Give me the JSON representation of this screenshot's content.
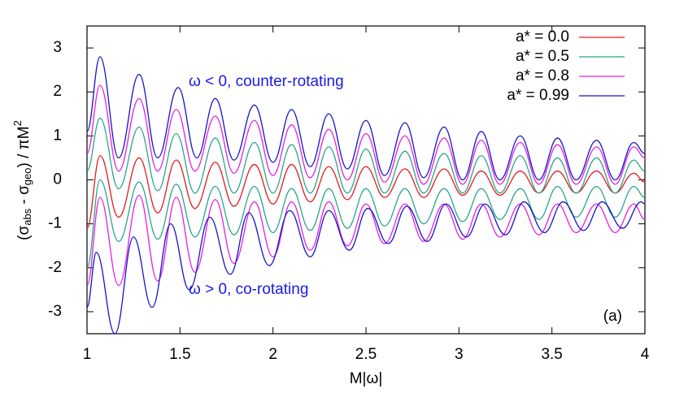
{
  "chart_data": {
    "type": "line",
    "x_label": "M|ω|",
    "y_label_parts": [
      "(σ",
      "abs",
      " - σ",
      "geo",
      ") / πM",
      "2"
    ],
    "annotations": [
      "ω < 0, counter-rotating",
      "ω > 0, co-rotating",
      "(a)"
    ],
    "xlim": [
      1,
      4
    ],
    "xticks": [
      1,
      1.5,
      2,
      2.5,
      3,
      3.5,
      4
    ],
    "ylim": [
      -3.5,
      3.5
    ],
    "yticks": [
      -3,
      -2,
      -1,
      0,
      1,
      2,
      3
    ],
    "legend": "upper right",
    "series": [
      {
        "name": "a* = 0.0",
        "color": "#e41a1c",
        "curves": [
          {
            "x": [
              1.0,
              1.07,
              1.17,
              1.28,
              1.38,
              1.48,
              1.58,
              1.69,
              1.79,
              1.9,
              2.0,
              2.1,
              2.2,
              2.3,
              2.4,
              2.5,
              2.6,
              2.71,
              2.81,
              2.92,
              3.02,
              3.12,
              3.22,
              3.33,
              3.43,
              3.53,
              3.63,
              3.74,
              3.84,
              3.94,
              4.0
            ],
            "values": [
              -1.1,
              0.55,
              -0.85,
              0.5,
              -0.75,
              0.45,
              -0.65,
              0.4,
              -0.6,
              0.35,
              -0.55,
              0.35,
              -0.5,
              0.3,
              -0.45,
              0.3,
              -0.4,
              0.25,
              -0.4,
              0.25,
              -0.35,
              0.2,
              -0.35,
              0.2,
              -0.3,
              0.2,
              -0.3,
              0.2,
              -0.3,
              0.15,
              -0.05
            ]
          }
        ]
      },
      {
        "name": "a* = 0.5",
        "color": "#2aa58a",
        "curves": [
          {
            "x": [
              1.0,
              1.07,
              1.17,
              1.28,
              1.38,
              1.48,
              1.58,
              1.69,
              1.79,
              1.9,
              2.0,
              2.1,
              2.2,
              2.3,
              2.4,
              2.5,
              2.6,
              2.71,
              2.81,
              2.92,
              3.02,
              3.12,
              3.22,
              3.33,
              3.43,
              3.53,
              3.63,
              3.74,
              3.84,
              3.94,
              4.0
            ],
            "values": [
              0.2,
              1.4,
              -0.2,
              1.2,
              -0.25,
              1.05,
              -0.3,
              0.95,
              -0.3,
              0.85,
              -0.3,
              0.8,
              -0.3,
              0.75,
              -0.3,
              0.7,
              -0.3,
              0.65,
              -0.3,
              0.6,
              -0.3,
              0.55,
              -0.3,
              0.55,
              -0.3,
              0.5,
              -0.3,
              0.5,
              -0.3,
              0.45,
              0.2
            ]
          },
          {
            "x": [
              1.0,
              1.07,
              1.17,
              1.28,
              1.38,
              1.48,
              1.58,
              1.69,
              1.79,
              1.9,
              2.0,
              2.1,
              2.2,
              2.3,
              2.4,
              2.5,
              2.6,
              2.71,
              2.81,
              2.92,
              3.02,
              3.12,
              3.22,
              3.33,
              3.43,
              3.53,
              3.63,
              3.74,
              3.84,
              3.94,
              4.0
            ],
            "values": [
              -2.0,
              0.0,
              -1.4,
              -0.05,
              -1.35,
              -0.1,
              -1.3,
              -0.15,
              -1.25,
              -0.15,
              -1.2,
              -0.2,
              -1.15,
              -0.2,
              -1.1,
              -0.2,
              -1.05,
              -0.2,
              -1.0,
              -0.2,
              -0.95,
              -0.2,
              -0.9,
              -0.2,
              -0.9,
              -0.15,
              -0.85,
              -0.15,
              -0.85,
              -0.15,
              -0.4
            ]
          }
        ]
      },
      {
        "name": "a* = 0.8",
        "color": "#e51ee5",
        "curves": [
          {
            "x": [
              1.0,
              1.07,
              1.17,
              1.28,
              1.38,
              1.48,
              1.58,
              1.69,
              1.79,
              1.9,
              2.0,
              2.1,
              2.2,
              2.3,
              2.4,
              2.5,
              2.6,
              2.71,
              2.81,
              2.92,
              3.02,
              3.12,
              3.22,
              3.33,
              3.43,
              3.53,
              3.63,
              3.74,
              3.84,
              3.94,
              4.0
            ],
            "values": [
              0.6,
              2.15,
              0.2,
              1.85,
              0.2,
              1.6,
              0.2,
              1.45,
              0.15,
              1.35,
              0.1,
              1.25,
              0.05,
              1.15,
              0.0,
              1.05,
              -0.05,
              1.0,
              -0.1,
              0.95,
              -0.1,
              0.9,
              -0.1,
              0.85,
              -0.1,
              0.8,
              -0.1,
              0.75,
              -0.1,
              0.75,
              0.5
            ]
          },
          {
            "x": [
              1.0,
              1.07,
              1.17,
              1.28,
              1.38,
              1.48,
              1.58,
              1.69,
              1.79,
              1.9,
              2.0,
              2.1,
              2.2,
              2.3,
              2.4,
              2.5,
              2.6,
              2.71,
              2.81,
              2.92,
              3.02,
              3.12,
              3.22,
              3.33,
              3.43,
              3.53,
              3.63,
              3.74,
              3.84,
              3.94,
              4.0
            ],
            "values": [
              -2.4,
              -0.4,
              -2.4,
              -0.35,
              -2.3,
              -0.4,
              -2.1,
              -0.45,
              -1.9,
              -0.5,
              -1.75,
              -0.5,
              -1.6,
              -0.5,
              -1.5,
              -0.55,
              -1.45,
              -0.55,
              -1.4,
              -0.55,
              -1.35,
              -0.55,
              -1.3,
              -0.55,
              -1.25,
              -0.55,
              -1.2,
              -0.55,
              -1.2,
              -0.55,
              -0.9
            ]
          }
        ]
      },
      {
        "name": "a* = 0.99",
        "color": "#1515c8",
        "curves": [
          {
            "x": [
              1.0,
              1.07,
              1.17,
              1.28,
              1.38,
              1.49,
              1.59,
              1.69,
              1.79,
              1.9,
              2.0,
              2.1,
              2.2,
              2.3,
              2.4,
              2.5,
              2.6,
              2.71,
              2.81,
              2.92,
              3.02,
              3.12,
              3.22,
              3.33,
              3.43,
              3.53,
              3.63,
              3.74,
              3.84,
              3.94,
              4.0
            ],
            "values": [
              1.1,
              2.8,
              0.5,
              2.4,
              0.5,
              2.1,
              0.5,
              1.85,
              0.45,
              1.7,
              0.4,
              1.6,
              0.3,
              1.5,
              0.25,
              1.35,
              0.1,
              1.3,
              0.05,
              1.2,
              0.0,
              1.1,
              0.0,
              1.0,
              0.0,
              0.95,
              0.0,
              0.9,
              0.0,
              0.85,
              0.6
            ]
          },
          {
            "x": [
              1.0,
              1.05,
              1.15,
              1.25,
              1.35,
              1.45,
              1.55,
              1.66,
              1.77,
              1.87,
              1.98,
              2.09,
              2.2,
              2.3,
              2.41,
              2.51,
              2.62,
              2.72,
              2.83,
              2.93,
              3.04,
              3.14,
              3.25,
              3.35,
              3.46,
              3.56,
              3.67,
              3.77,
              3.88,
              3.98,
              4.0
            ],
            "values": [
              -2.9,
              -1.65,
              -3.5,
              -1.3,
              -2.9,
              -1.0,
              -2.5,
              -0.85,
              -2.15,
              -0.75,
              -1.95,
              -0.7,
              -1.75,
              -0.7,
              -1.6,
              -0.65,
              -1.45,
              -0.6,
              -1.4,
              -0.55,
              -1.3,
              -0.55,
              -1.25,
              -0.5,
              -1.2,
              -0.5,
              -1.15,
              -0.5,
              -1.1,
              -0.5,
              -0.55
            ]
          }
        ]
      }
    ]
  }
}
